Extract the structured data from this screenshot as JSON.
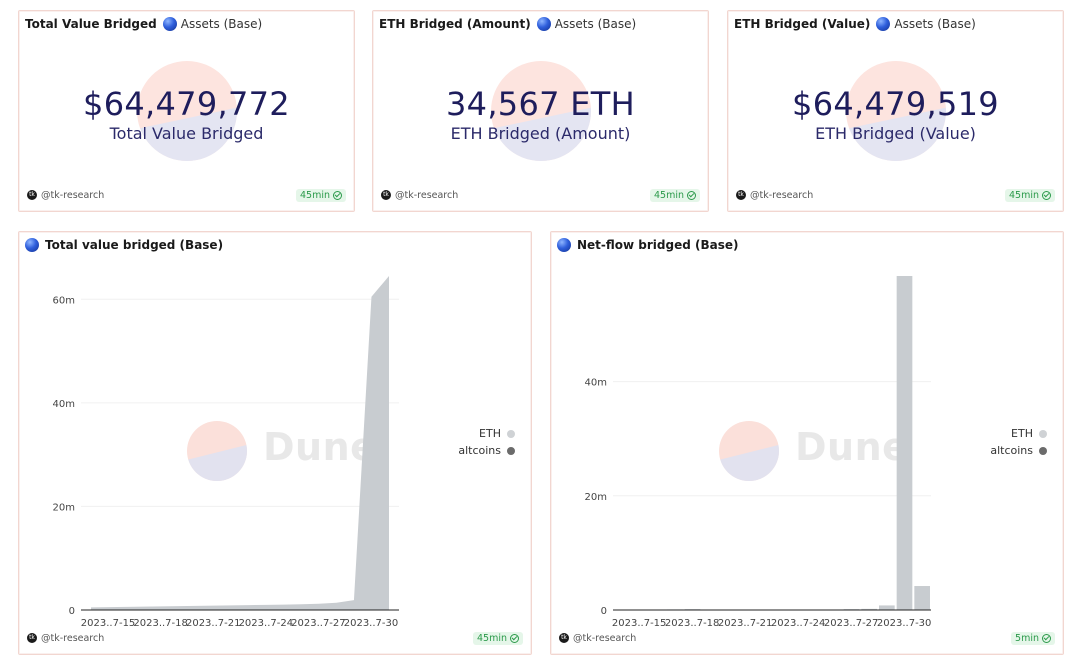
{
  "counters": [
    {
      "title": "Total Value Bridged",
      "subtitle": "Assets (Base)",
      "value": "$64,479,772",
      "label": "Total Value Bridged",
      "author": "@tk-research",
      "refresh": "45min"
    },
    {
      "title": "ETH Bridged (Amount)",
      "subtitle": "Assets (Base)",
      "value": "34,567 ETH",
      "label": "ETH Bridged (Amount)",
      "author": "@tk-research",
      "refresh": "45min"
    },
    {
      "title": "ETH Bridged (Value)",
      "subtitle": "Assets (Base)",
      "value": "$64,479,519",
      "label": "ETH Bridged (Value)",
      "author": "@tk-research",
      "refresh": "45min"
    }
  ],
  "charts": {
    "area": {
      "title": "Total value bridged (Base)",
      "author": "@tk-research",
      "refresh": "45min",
      "watermark": "Dune"
    },
    "bar": {
      "title": "Net-flow bridged (Base)",
      "author": "@tk-research",
      "refresh": "5min",
      "watermark": "Dune"
    }
  },
  "colors": {
    "eth": "#c8ccd0",
    "altcoins": "#6b6b6b"
  },
  "chart_data": [
    {
      "type": "area",
      "title": "Total value bridged (Base)",
      "x": [
        "2023-07-13",
        "2023-07-14",
        "2023-07-15",
        "2023-07-16",
        "2023-07-17",
        "2023-07-18",
        "2023-07-19",
        "2023-07-20",
        "2023-07-21",
        "2023-07-22",
        "2023-07-23",
        "2023-07-24",
        "2023-07-25",
        "2023-07-26",
        "2023-07-27",
        "2023-07-28",
        "2023-07-29",
        "2023-07-30"
      ],
      "tick_labels": [
        "2023..7-15",
        "2023..7-18",
        "2023..7-21",
        "2023..7-24",
        "2023..7-27",
        "2023..7-30"
      ],
      "series": [
        {
          "name": "ETH",
          "values": [
            0.5,
            0.55,
            0.6,
            0.65,
            0.7,
            0.75,
            0.8,
            0.85,
            0.9,
            0.95,
            1.0,
            1.05,
            1.1,
            1.2,
            1.4,
            1.9,
            60.5,
            64.5
          ]
        },
        {
          "name": "altcoins",
          "values": [
            0,
            0,
            0,
            0,
            0,
            0,
            0,
            0,
            0,
            0,
            0,
            0,
            0,
            0,
            0,
            0,
            0,
            0
          ]
        }
      ],
      "y_ticks": [
        "0",
        "20m",
        "40m",
        "60m"
      ],
      "ylim": [
        0,
        64.5
      ],
      "legend": "right"
    },
    {
      "type": "bar",
      "title": "Net-flow bridged (Base)",
      "x": [
        "2023-07-13",
        "2023-07-14",
        "2023-07-15",
        "2023-07-16",
        "2023-07-17",
        "2023-07-18",
        "2023-07-19",
        "2023-07-20",
        "2023-07-21",
        "2023-07-22",
        "2023-07-23",
        "2023-07-24",
        "2023-07-25",
        "2023-07-26",
        "2023-07-27",
        "2023-07-28",
        "2023-07-29",
        "2023-07-30"
      ],
      "tick_labels": [
        "2023..7-15",
        "2023..7-18",
        "2023..7-21",
        "2023..7-24",
        "2023..7-27",
        "2023..7-30"
      ],
      "series": [
        {
          "name": "ETH",
          "values": [
            0.05,
            0.05,
            0.08,
            0.1,
            0.15,
            0.05,
            0.05,
            0.05,
            0.05,
            0.05,
            0.05,
            0.05,
            0.05,
            0.15,
            0.2,
            0.8,
            58.5,
            4.2
          ]
        },
        {
          "name": "altcoins",
          "values": [
            0,
            0,
            0,
            0,
            0,
            0,
            0,
            0,
            0,
            0,
            0,
            0,
            0,
            0,
            0,
            0,
            0,
            0
          ]
        }
      ],
      "y_ticks": [
        "0",
        "20m",
        "40m"
      ],
      "ylim": [
        0,
        58.5
      ],
      "legend": "right"
    }
  ]
}
